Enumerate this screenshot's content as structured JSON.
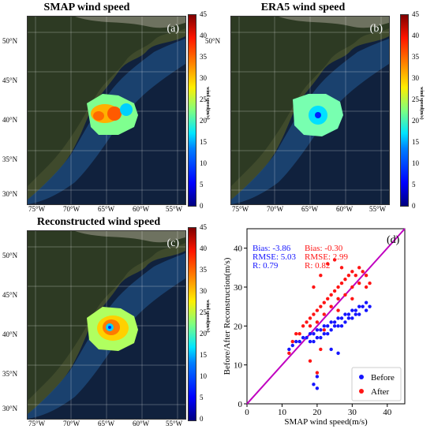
{
  "panels": [
    {
      "title": "SMAP wind speed",
      "label": "(a)"
    },
    {
      "title": "ERA5 wind speed",
      "label": "(b)"
    },
    {
      "title": "Reconstructed wind speed",
      "label": "(c)"
    }
  ],
  "map_lat_ticks": [
    "50°N",
    "45°N",
    "40°N",
    "35°N",
    "30°N"
  ],
  "map_lon_ticks": [
    "75°W",
    "70°W",
    "65°W",
    "60°W",
    "55°W"
  ],
  "colorbar": {
    "ticks": [
      "45",
      "40",
      "35",
      "30",
      "25",
      "20",
      "15",
      "10",
      "5",
      "0"
    ],
    "label": "wind speed(m/s)"
  },
  "chart_data": {
    "type": "scatter",
    "label": "(d)",
    "xlabel": "SMAP wind speed(m/s)",
    "ylabel": "Before/After Reconstruction(m/s)",
    "xlim": [
      0,
      45
    ],
    "ylim": [
      0,
      45
    ],
    "x_ticks": [
      0,
      10,
      20,
      30,
      40
    ],
    "y_ticks": [
      0,
      10,
      20,
      30,
      40
    ],
    "reference_line": {
      "from": [
        0,
        0
      ],
      "to": [
        45,
        45
      ],
      "color": "#c000c0"
    },
    "stats": {
      "before": {
        "bias": "Bias: -3.86",
        "rmse": "RMSE: 5.03",
        "r": "R: 0.79"
      },
      "after": {
        "bias": "Bias: -0.30",
        "rmse": "RMSE: 2.99",
        "r": "R: 0.82"
      }
    },
    "series": [
      {
        "name": "Before",
        "color": "#1515ff",
        "points": [
          [
            12,
            14
          ],
          [
            13,
            15
          ],
          [
            14,
            16
          ],
          [
            15,
            16
          ],
          [
            16,
            17
          ],
          [
            17,
            17
          ],
          [
            18,
            18
          ],
          [
            18,
            16
          ],
          [
            19,
            18
          ],
          [
            20,
            19
          ],
          [
            20,
            17
          ],
          [
            21,
            19
          ],
          [
            22,
            20
          ],
          [
            22,
            18
          ],
          [
            23,
            20
          ],
          [
            24,
            21
          ],
          [
            24,
            19
          ],
          [
            25,
            21
          ],
          [
            26,
            22
          ],
          [
            26,
            20
          ],
          [
            27,
            22
          ],
          [
            28,
            23
          ],
          [
            28,
            21
          ],
          [
            29,
            23
          ],
          [
            30,
            24
          ],
          [
            30,
            22
          ],
          [
            31,
            24
          ],
          [
            32,
            25
          ],
          [
            32,
            23
          ],
          [
            33,
            25
          ],
          [
            34,
            26
          ],
          [
            34,
            24
          ],
          [
            35,
            25
          ],
          [
            19,
            16
          ],
          [
            21,
            17
          ],
          [
            23,
            18
          ],
          [
            25,
            20
          ],
          [
            27,
            20
          ],
          [
            29,
            22
          ],
          [
            31,
            23
          ],
          [
            20,
            4
          ],
          [
            19,
            5
          ],
          [
            20,
            7
          ],
          [
            24,
            14
          ],
          [
            26,
            13
          ]
        ]
      },
      {
        "name": "After",
        "color": "#ff1515",
        "points": [
          [
            12,
            13
          ],
          [
            13,
            16
          ],
          [
            14,
            18
          ],
          [
            15,
            18
          ],
          [
            16,
            20
          ],
          [
            17,
            21
          ],
          [
            18,
            22
          ],
          [
            18,
            20
          ],
          [
            19,
            23
          ],
          [
            20,
            24
          ],
          [
            20,
            21
          ],
          [
            21,
            25
          ],
          [
            22,
            26
          ],
          [
            22,
            23
          ],
          [
            23,
            27
          ],
          [
            24,
            28
          ],
          [
            24,
            25
          ],
          [
            25,
            29
          ],
          [
            26,
            30
          ],
          [
            26,
            27
          ],
          [
            27,
            31
          ],
          [
            28,
            32
          ],
          [
            28,
            28
          ],
          [
            29,
            33
          ],
          [
            30,
            34
          ],
          [
            30,
            30
          ],
          [
            31,
            33
          ],
          [
            32,
            35
          ],
          [
            32,
            31
          ],
          [
            33,
            34
          ],
          [
            34,
            33
          ],
          [
            34,
            30
          ],
          [
            35,
            31
          ],
          [
            23,
            36
          ],
          [
            25,
            37
          ],
          [
            21,
            33
          ],
          [
            19,
            30
          ],
          [
            27,
            35
          ],
          [
            20,
            8
          ],
          [
            18,
            11
          ],
          [
            21,
            14
          ],
          [
            30,
            27
          ],
          [
            26,
            24
          ],
          [
            22,
            19
          ]
        ]
      }
    ]
  }
}
